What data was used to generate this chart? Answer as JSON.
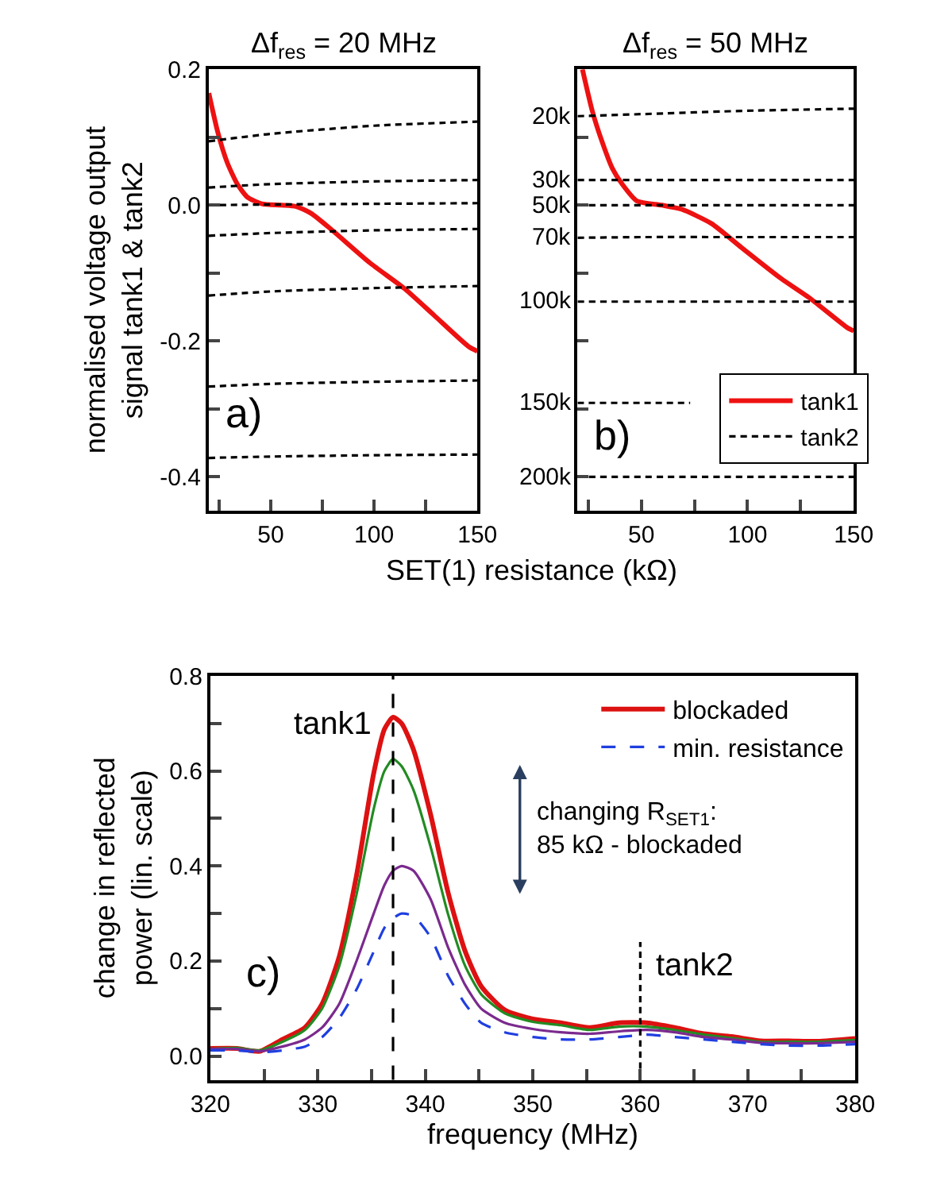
{
  "chart_data": [
    {
      "type": "line",
      "title": "Δf$_{res}$ = 20 MHz",
      "xlabel": "SET(1) resistance (kΩ)",
      "ylabel": "normalised voltage output\nsignal tank1 & tank2",
      "xlim": [
        20,
        150
      ],
      "ylim": [
        -0.45,
        0.2
      ],
      "xticks": [
        {
          "value": 25,
          "label": null
        },
        50,
        {
          "value": 75,
          "label": null
        },
        100,
        {
          "value": 125,
          "label": null
        },
        150
      ],
      "yticks": [
        {
          "value": -0.4,
          "label": "-0.4"
        },
        {
          "value": -0.3,
          "label": null
        },
        {
          "value": -0.2,
          "label": "-0.2"
        },
        {
          "value": -0.1,
          "label": null
        },
        {
          "value": 0,
          "label": "0.0"
        },
        {
          "value": 0.1,
          "label": null
        },
        {
          "value": 0.2,
          "label": "0.2"
        }
      ],
      "annotations": [
        "a)"
      ],
      "series": [
        {
          "color": "#ee1111",
          "line_style": "solid",
          "x": [
            20,
            24.3,
            29,
            33.8,
            38.6,
            45.7,
            55,
            62.4,
            69.5,
            79,
            98,
            114.8,
            129,
            145.7,
            150
          ],
          "values": [
            0.165,
            0.108,
            0.062,
            0.031,
            0.012,
            0.002,
            0.0,
            -0.002,
            -0.012,
            -0.035,
            -0.085,
            -0.123,
            -0.162,
            -0.208,
            -0.215
          ]
        },
        {
          "color": "#000000",
          "line_style": "dashed",
          "x": [
            20,
            50,
            100,
            150
          ],
          "values": [
            0.094,
            0.105,
            0.117,
            0.123
          ]
        },
        {
          "color": "#000000",
          "line_style": "dashed",
          "x": [
            20,
            50,
            100,
            150
          ],
          "values": [
            0.026,
            0.031,
            0.035,
            0.037
          ]
        },
        {
          "color": "#000000",
          "line_style": "dashed",
          "x": [
            20,
            50,
            100,
            150
          ],
          "values": [
            0.0,
            0.001,
            0.002,
            0.003
          ]
        },
        {
          "color": "#000000",
          "line_style": "dashed",
          "x": [
            20,
            50,
            100,
            150
          ],
          "values": [
            -0.045,
            -0.041,
            -0.037,
            -0.035
          ]
        },
        {
          "color": "#000000",
          "line_style": "dashed",
          "x": [
            20,
            50,
            100,
            150
          ],
          "values": [
            -0.133,
            -0.127,
            -0.122,
            -0.119
          ]
        },
        {
          "color": "#000000",
          "line_style": "dashed",
          "x": [
            20,
            50,
            100,
            150
          ],
          "values": [
            -0.267,
            -0.263,
            -0.26,
            -0.258
          ]
        },
        {
          "color": "#000000",
          "line_style": "dashed",
          "x": [
            20,
            50,
            100,
            150
          ],
          "values": [
            -0.372,
            -0.37,
            -0.368,
            -0.367
          ]
        }
      ]
    },
    {
      "type": "line",
      "title": "Δf$_{res}$ = 50 MHz",
      "tick_labels": "x",
      "legend": "bottom right",
      "xlim": [
        20,
        150
      ],
      "ylim": [
        -0.45,
        0.2
      ],
      "xticks": [
        {
          "value": 25,
          "label": null
        },
        50,
        {
          "value": 75,
          "label": null
        },
        100,
        {
          "value": 125,
          "label": null
        },
        150
      ],
      "yticks": [
        {
          "value": -0.4,
          "label": null
        },
        {
          "value": -0.3,
          "label": null
        },
        {
          "value": -0.2,
          "label": null
        },
        {
          "value": -0.1,
          "label": null
        },
        {
          "value": 0,
          "label": null
        },
        {
          "value": 0.1,
          "label": null
        },
        {
          "value": 0.2,
          "label": null
        }
      ],
      "annotations": [
        "b)",
        "20k",
        "30k",
        "50k",
        "70k",
        "100k",
        "150k",
        "200k"
      ],
      "series": [
        {
          "name": "tank1",
          "color": "#ee1111",
          "line_style": "solid",
          "x": [
            22.3,
            27,
            31.7,
            36.4,
            41,
            48,
            59.7,
            69,
            83,
            97,
            115.8,
            129.8,
            147.3,
            150
          ],
          "values": [
            0.2,
            0.138,
            0.092,
            0.054,
            0.031,
            0.006,
            0.0,
            -0.006,
            -0.027,
            -0.062,
            -0.108,
            -0.138,
            -0.181,
            -0.185
          ]
        },
        {
          "name": "tank2",
          "color": "#000000",
          "line_style": "dashed",
          "x": [
            20,
            50,
            100,
            150
          ],
          "values": [
            0.131,
            0.134,
            0.139,
            0.142
          ]
        },
        {
          "color": "#000000",
          "line_style": "dashed",
          "x": [
            20,
            50,
            100,
            150
          ],
          "values": [
            0.037,
            0.037,
            0.037,
            0.037
          ]
        },
        {
          "color": "#000000",
          "line_style": "dashed",
          "x": [
            20,
            50,
            100,
            150
          ],
          "values": [
            0.0,
            0.0,
            0.0,
            0.0
          ]
        },
        {
          "color": "#000000",
          "line_style": "dashed",
          "x": [
            20,
            50,
            100,
            150
          ],
          "values": [
            -0.048,
            -0.047,
            -0.047,
            -0.047
          ]
        },
        {
          "color": "#000000",
          "line_style": "dashed",
          "x": [
            20,
            50,
            100,
            150
          ],
          "values": [
            -0.142,
            -0.142,
            -0.142,
            -0.142
          ]
        },
        {
          "color": "#000000",
          "line_style": "dashed",
          "x": [
            20,
            73
          ],
          "values": [
            -0.291,
            -0.291
          ]
        },
        {
          "color": "#000000",
          "line_style": "dashed",
          "x": [
            20,
            50,
            100,
            150
          ],
          "values": [
            -0.4,
            -0.4,
            -0.4,
            -0.4
          ]
        }
      ]
    },
    {
      "type": "line",
      "xlabel": "frequency (MHz)",
      "ylabel": "change in reflected\npower (lin. scale)",
      "legend": "top right",
      "xlim": [
        320,
        380
      ],
      "ylim": [
        -0.05,
        0.8
      ],
      "xticks": [
        320,
        {
          "value": 325,
          "label": null
        },
        330,
        {
          "value": 335,
          "label": null
        },
        340,
        {
          "value": 345,
          "label": null
        },
        350,
        {
          "value": 355,
          "label": null
        },
        360,
        {
          "value": 365,
          "label": null
        },
        370,
        {
          "value": 375,
          "label": null
        },
        380
      ],
      "yticks": [
        {
          "value": 0,
          "label": "0.0"
        },
        {
          "value": 0.1,
          "label": null
        },
        {
          "value": 0.2,
          "label": "0.2"
        },
        {
          "value": 0.3,
          "label": null
        },
        {
          "value": 0.4,
          "label": "0.4"
        },
        {
          "value": 0.5,
          "label": null
        },
        {
          "value": 0.6,
          "label": "0.6"
        },
        {
          "value": 0.7,
          "label": null
        },
        {
          "value": 0.8,
          "label": "0.8"
        }
      ],
      "annotations": [
        "c)",
        "changing R$_{SET1}$:\n85 kΩ - blockaded",
        {
          "text": "tank2",
          "x": 360,
          "y": 0.19
        }
      ],
      "ref_lines": [
        {
          "axis": "x",
          "value": 337,
          "label": "tank1",
          "color": "#000000",
          "line_style": "dashed"
        }
      ],
      "x": [
        320,
        322.5,
        324.6,
        326.7,
        328.8,
        330.4,
        332,
        333.6,
        335.2,
        336.2,
        337,
        337.8,
        338.9,
        340.5,
        342.1,
        343.7,
        345.2,
        347.4,
        350,
        352.6,
        355.3,
        358,
        360.6,
        363.2,
        365.9,
        368.5,
        371.2,
        373.8,
        376.5,
        380
      ],
      "series": [
        {
          "name": "blockaded",
          "color": "#dd1111",
          "line_style": "solid",
          "values": [
            0.016,
            0.016,
            0.01,
            0.035,
            0.06,
            0.11,
            0.21,
            0.38,
            0.595,
            0.688,
            0.713,
            0.7,
            0.645,
            0.508,
            0.346,
            0.221,
            0.147,
            0.097,
            0.078,
            0.07,
            0.06,
            0.07,
            0.07,
            0.06,
            0.047,
            0.041,
            0.032,
            0.032,
            0.031,
            0.037
          ]
        },
        {
          "color": "#228b22",
          "line_style": "solid",
          "values": [
            0.015,
            0.017,
            0.012,
            0.03,
            0.055,
            0.1,
            0.19,
            0.34,
            0.52,
            0.6,
            0.625,
            0.61,
            0.56,
            0.44,
            0.3,
            0.19,
            0.13,
            0.09,
            0.072,
            0.065,
            0.055,
            0.062,
            0.062,
            0.055,
            0.045,
            0.038,
            0.03,
            0.03,
            0.03,
            0.034
          ]
        },
        {
          "color": "#7b2a8e",
          "line_style": "solid",
          "values": [
            0.015,
            0.015,
            0.01,
            0.02,
            0.035,
            0.06,
            0.11,
            0.2,
            0.3,
            0.36,
            0.39,
            0.4,
            0.39,
            0.33,
            0.23,
            0.15,
            0.1,
            0.07,
            0.057,
            0.05,
            0.047,
            0.052,
            0.055,
            0.05,
            0.04,
            0.035,
            0.028,
            0.027,
            0.027,
            0.03
          ]
        },
        {
          "name": "min. resistance",
          "color": "#1f3fe0",
          "line_style": "dashed",
          "values": [
            0.012,
            0.012,
            0.008,
            0.012,
            0.02,
            0.04,
            0.08,
            0.14,
            0.22,
            0.27,
            0.29,
            0.3,
            0.295,
            0.25,
            0.17,
            0.11,
            0.07,
            0.05,
            0.04,
            0.035,
            0.035,
            0.04,
            0.045,
            0.04,
            0.035,
            0.03,
            0.025,
            0.022,
            0.022,
            0.025
          ]
        },
        {
          "color": "#000000",
          "line_style": "dashed",
          "x": [
            360,
            360
          ],
          "values": [
            -0.05,
            0.24
          ]
        }
      ]
    }
  ]
}
